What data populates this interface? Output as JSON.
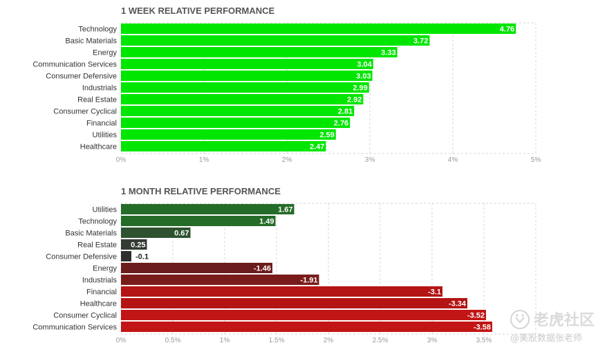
{
  "chart_data": [
    {
      "type": "bar",
      "orientation": "horizontal",
      "title": "1 WEEK RELATIVE PERFORMANCE",
      "categories": [
        "Technology",
        "Basic Materials",
        "Energy",
        "Communication Services",
        "Consumer Defensive",
        "Industrials",
        "Real Estate",
        "Consumer Cyclical",
        "Financial",
        "Utilities",
        "Healthcare"
      ],
      "values": [
        4.76,
        3.72,
        3.33,
        3.04,
        3.03,
        2.99,
        2.92,
        2.81,
        2.76,
        2.59,
        2.47
      ],
      "value_labels": [
        "4.76",
        "3.72",
        "3.33",
        "3.04",
        "3.03",
        "2.99",
        "2.92",
        "2.81",
        "2.76",
        "2.59",
        "2.47"
      ],
      "colors": [
        "#00e600",
        "#00e600",
        "#00e600",
        "#00e600",
        "#00e600",
        "#00e600",
        "#00e600",
        "#00e600",
        "#00e600",
        "#00e600",
        "#00e600"
      ],
      "xlim": [
        0,
        5
      ],
      "ticks": [
        0,
        1,
        2,
        3,
        4,
        5
      ],
      "tick_labels": [
        "0%",
        "1%",
        "2%",
        "3%",
        "4%",
        "5%"
      ],
      "grid": true
    },
    {
      "type": "bar",
      "orientation": "horizontal",
      "title": "1 MONTH RELATIVE PERFORMANCE",
      "categories": [
        "Utilities",
        "Technology",
        "Basic Materials",
        "Real Estate",
        "Consumer Defensive",
        "Energy",
        "Industrials",
        "Financial",
        "Healthcare",
        "Consumer Cyclical",
        "Communication Services"
      ],
      "values": [
        1.67,
        1.49,
        0.67,
        0.25,
        -0.1,
        -1.46,
        -1.91,
        -3.1,
        -3.34,
        -3.52,
        -3.58
      ],
      "value_labels": [
        "1.67",
        "1.49",
        "0.67",
        "0.25",
        "-0.1",
        "-1.46",
        "-1.91",
        "-3.1",
        "-3.34",
        "-3.52",
        "-3.58"
      ],
      "colors": [
        "#256c28",
        "#256c28",
        "#2e5230",
        "#333b33",
        "#2e2e2e",
        "#6b1c1c",
        "#7a1b1b",
        "#b41414",
        "#b41414",
        "#c21515",
        "#c21515"
      ],
      "xlim": [
        0,
        4
      ],
      "ticks": [
        0,
        0.5,
        1,
        1.5,
        2,
        2.5,
        3,
        3.5
      ],
      "tick_labels": [
        "0%",
        "0.5%",
        "1%",
        "1.5%",
        "2%",
        "2.5%",
        "3%",
        "3.5%"
      ],
      "grid": true
    }
  ],
  "watermark": {
    "line1": "老虎社区",
    "line2": "@美股数据张老师"
  }
}
